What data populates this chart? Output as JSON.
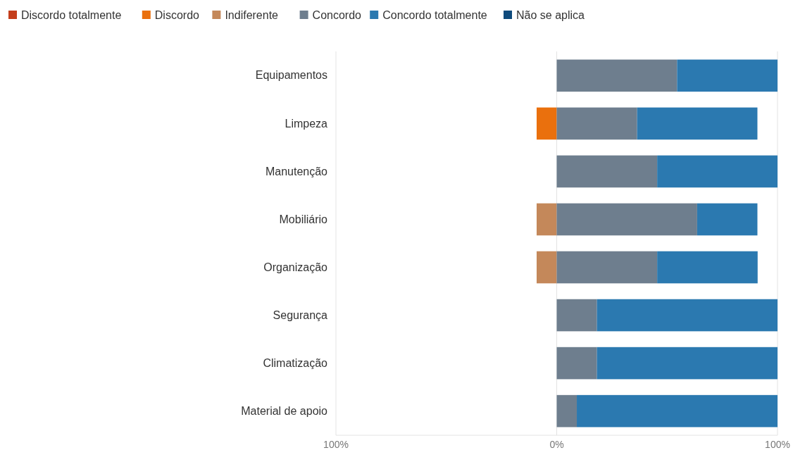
{
  "chart_data": {
    "type": "bar",
    "orientation": "horizontal",
    "stacked": true,
    "categories": [
      "Equipamentos",
      "Limpeza",
      "Manutenção",
      "Mobiliário",
      "Organização",
      "Segurança",
      "Climatização",
      "Material de apoio"
    ],
    "series": [
      {
        "name": "Discordo totalmente",
        "color": "#c43e1c",
        "values": [
          null,
          null,
          null,
          null,
          null,
          null,
          null,
          null
        ]
      },
      {
        "name": "Discordo",
        "color": "#ea700d",
        "values": [
          null,
          -9.1,
          null,
          null,
          null,
          null,
          null,
          null
        ]
      },
      {
        "name": "Indiferente",
        "color": "#c4885a",
        "values": [
          null,
          null,
          null,
          -9.1,
          -9.1,
          null,
          null,
          null
        ]
      },
      {
        "name": "Concordo",
        "color": "#6e7e8e",
        "values": [
          54.5,
          36.4,
          45.5,
          63.6,
          45.5,
          18.2,
          18.2,
          9.1
        ]
      },
      {
        "name": "Concordo totalmente",
        "color": "#2b79b0",
        "values": [
          45.5,
          54.5,
          54.5,
          27.3,
          45.5,
          81.8,
          81.8,
          90.9
        ]
      },
      {
        "name": "Não se aplica",
        "color": "#0e4a7c",
        "values": [
          null,
          null,
          null,
          null,
          null,
          null,
          null,
          null
        ]
      }
    ],
    "xlim": [
      -100,
      100
    ],
    "xticks": [
      {
        "value": -100,
        "label": "100%"
      },
      {
        "value": 0,
        "label": "0%"
      },
      {
        "value": 100,
        "label": "100%"
      }
    ],
    "grid": "x",
    "legend": "top"
  }
}
